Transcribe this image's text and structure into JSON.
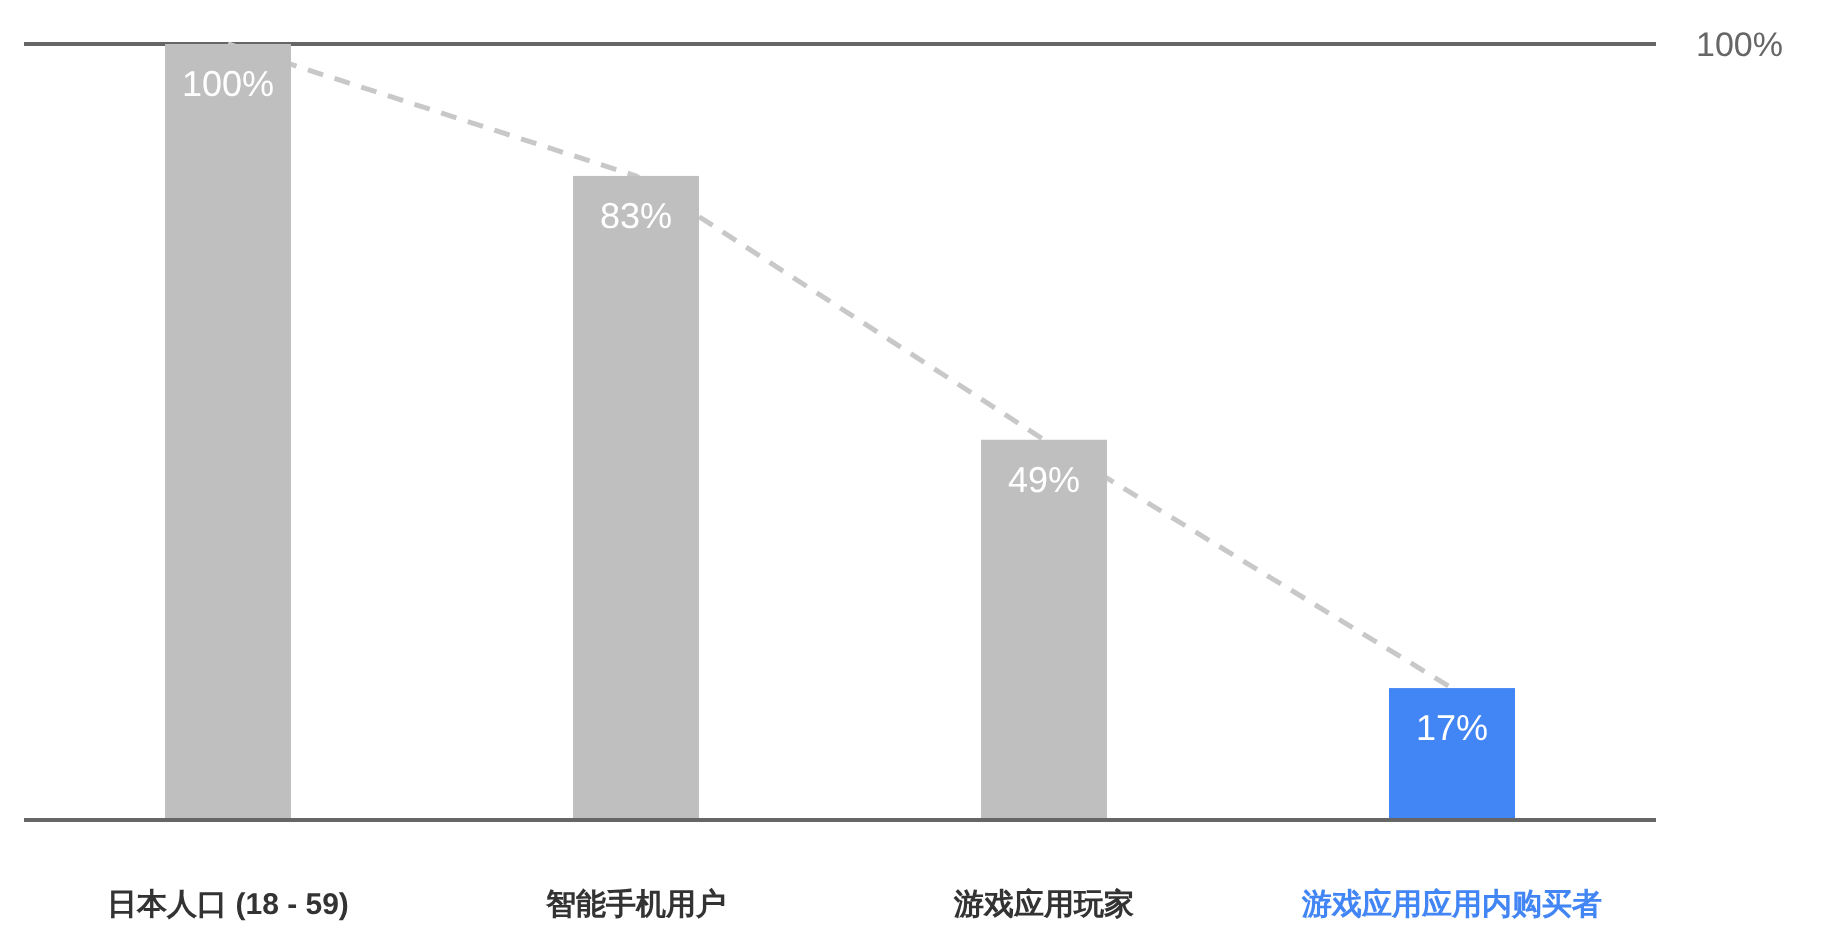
{
  "chart_data": {
    "type": "bar",
    "categories": [
      "日本人口 (18 - 59)",
      "智能手机用户",
      "游戏应用玩家",
      "游戏应用应用内购买者"
    ],
    "series": [
      {
        "colors": [
          "#bfbfbf",
          "#bfbfbf",
          "#bfbfbf",
          "#4285f4"
        ],
        "values": [
          100,
          83,
          49,
          17
        ],
        "value_labels": [
          "100%",
          "83%",
          "49%",
          "17%"
        ]
      },
      {
        "type": "line",
        "color": "#c8c8c8",
        "line_style": "dashed",
        "values": [
          100,
          83,
          49,
          17
        ]
      }
    ],
    "ylim": [
      0,
      100
    ],
    "tick_labels": "x",
    "ref_lines": [
      {
        "axis": "y",
        "value": 100,
        "label": "100%",
        "color": "#666666"
      }
    ]
  }
}
